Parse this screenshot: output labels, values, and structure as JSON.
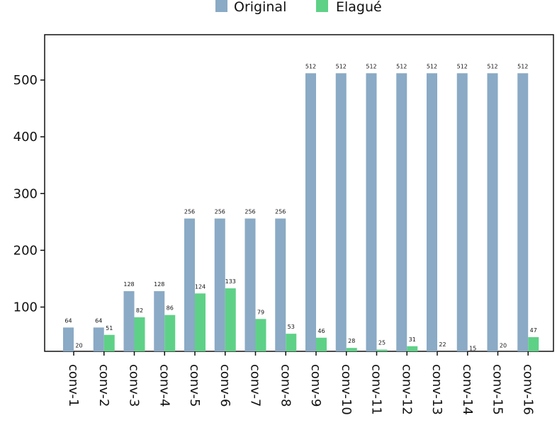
{
  "chart_data": {
    "type": "bar",
    "categories": [
      "conv-1",
      "conv-2",
      "conv-3",
      "conv-4",
      "conv-5",
      "conv-6",
      "conv-7",
      "conv-8",
      "conv-9",
      "conv-10",
      "conv-11",
      "conv-12",
      "conv-13",
      "conv-14",
      "conv-15",
      "conv-16"
    ],
    "series": [
      {
        "name": "Original",
        "values": [
          64,
          64,
          128,
          128,
          256,
          256,
          256,
          256,
          512,
          512,
          512,
          512,
          512,
          512,
          512,
          512
        ]
      },
      {
        "name": "Elagué",
        "values": [
          20,
          51,
          82,
          86,
          124,
          133,
          79,
          53,
          46,
          28,
          25,
          31,
          22,
          15,
          20,
          47
        ]
      }
    ],
    "ylim": [
      30,
      550
    ],
    "yticks": [
      100,
      200,
      300,
      400,
      500
    ],
    "legend_position": "top",
    "grid": false,
    "colors": {
      "Original": "#8aaac5",
      "Elagué": "#5ed187"
    }
  }
}
